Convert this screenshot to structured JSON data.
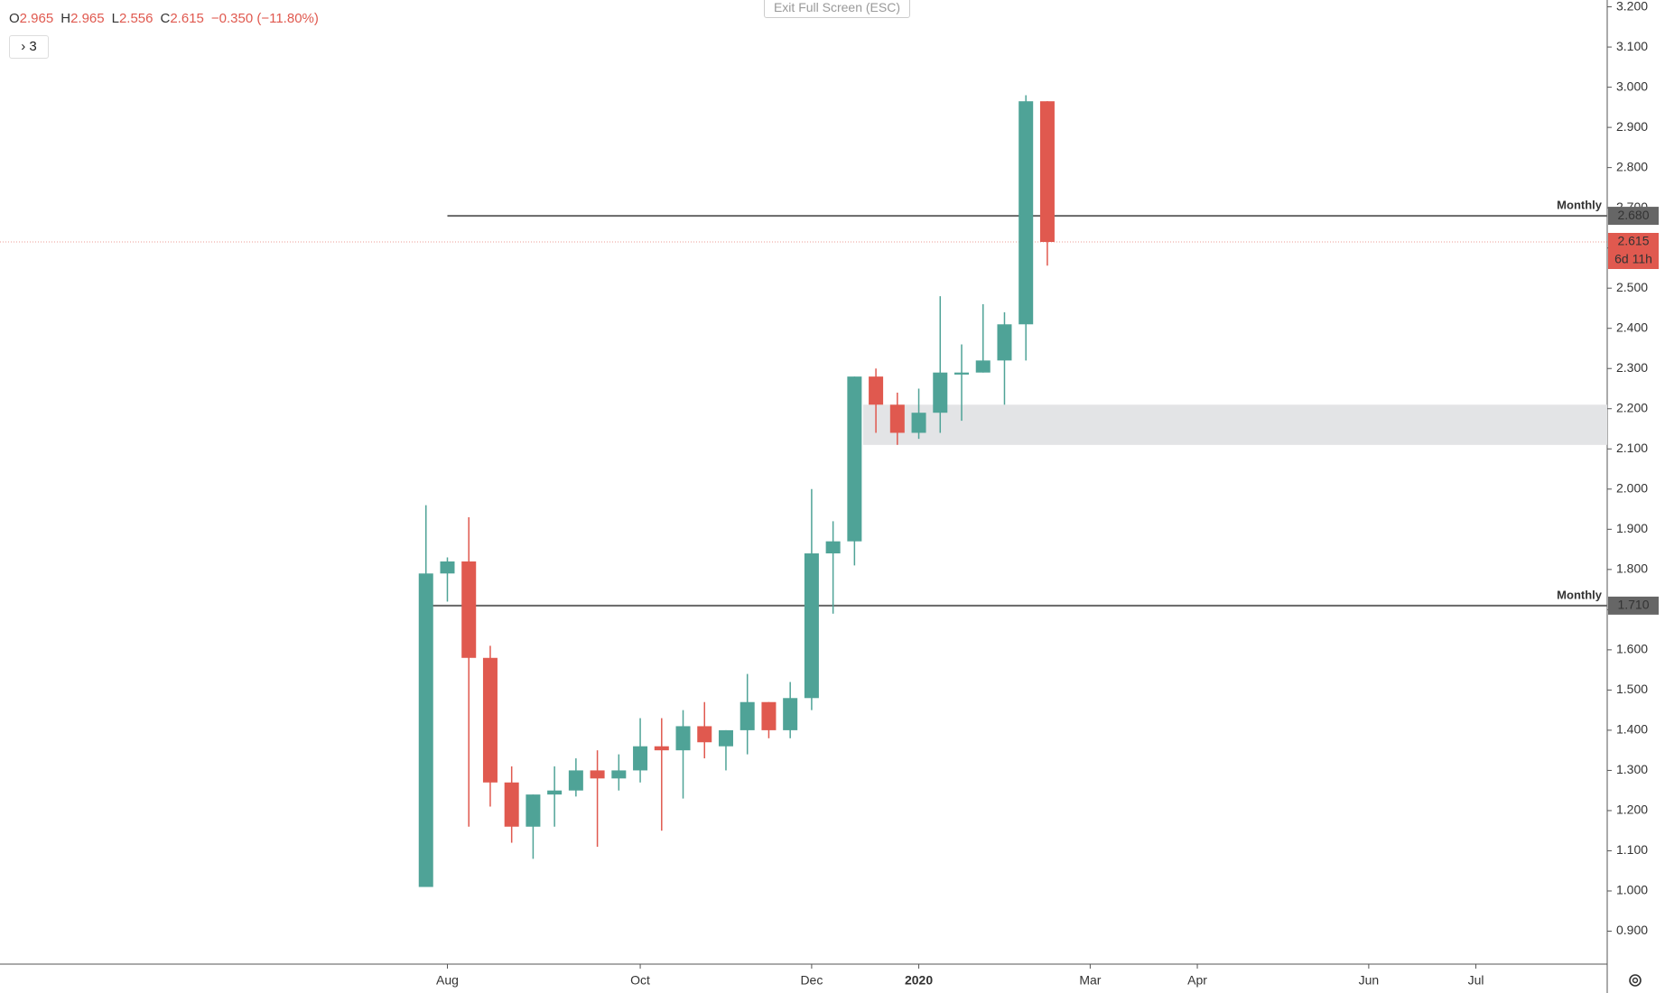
{
  "ui": {
    "exit_button": "Exit Full Screen (ESC)",
    "collapse_count": "3"
  },
  "header": {
    "open_prefix": "O",
    "open": "2.965",
    "high_prefix": "H",
    "high": "2.965",
    "low_prefix": "L",
    "low": "2.556",
    "close_prefix": "C",
    "close": "2.615",
    "change": "−0.350 (−11.80%)"
  },
  "chart_data": {
    "type": "candlestick",
    "x": [
      0,
      1,
      2,
      3,
      4,
      5,
      6,
      7,
      8,
      9,
      10,
      11,
      12,
      13,
      14,
      15,
      16,
      17,
      18,
      19,
      20,
      21,
      22,
      23,
      24,
      25,
      26,
      27,
      28,
      29
    ],
    "open": [
      1.01,
      1.79,
      1.82,
      1.58,
      1.27,
      1.16,
      1.24,
      1.25,
      1.3,
      1.28,
      1.3,
      1.36,
      1.35,
      1.41,
      1.36,
      1.4,
      1.47,
      1.4,
      1.48,
      1.84,
      1.87,
      2.28,
      2.21,
      2.14,
      2.19,
      2.285,
      2.29,
      2.32,
      2.41,
      2.965
    ],
    "high": [
      1.96,
      1.83,
      1.93,
      1.61,
      1.31,
      1.24,
      1.31,
      1.33,
      1.35,
      1.34,
      1.43,
      1.43,
      1.45,
      1.47,
      1.4,
      1.54,
      1.47,
      1.52,
      2.0,
      1.92,
      2.28,
      2.3,
      2.24,
      2.25,
      2.48,
      2.36,
      2.46,
      2.44,
      2.98,
      2.965
    ],
    "low": [
      1.01,
      1.72,
      1.16,
      1.21,
      1.12,
      1.08,
      1.16,
      1.235,
      1.11,
      1.25,
      1.27,
      1.15,
      1.23,
      1.33,
      1.3,
      1.34,
      1.38,
      1.38,
      1.45,
      1.69,
      1.81,
      2.14,
      2.11,
      2.125,
      2.14,
      2.17,
      2.29,
      2.21,
      2.32,
      2.556
    ],
    "close": [
      1.79,
      1.82,
      1.58,
      1.27,
      1.16,
      1.24,
      1.25,
      1.3,
      1.28,
      1.3,
      1.36,
      1.35,
      1.41,
      1.37,
      1.4,
      1.47,
      1.4,
      1.48,
      1.84,
      1.87,
      2.28,
      2.21,
      2.14,
      2.19,
      2.29,
      2.29,
      2.32,
      2.41,
      2.965,
      2.615
    ],
    "up_color": "#4fa397",
    "down_color": "#e0594f",
    "xlim": [
      -19.88,
      55.13
    ],
    "xticks": [
      {
        "value": 1,
        "label": "Aug"
      },
      {
        "value": 10,
        "label": "Oct"
      },
      {
        "value": 18,
        "label": "Dec"
      },
      {
        "value": 23,
        "label": "2020"
      },
      {
        "value": 31,
        "label": "Mar"
      },
      {
        "value": 36,
        "label": "Apr"
      },
      {
        "value": 44,
        "label": "Jun"
      },
      {
        "value": 49,
        "label": "Jul"
      }
    ],
    "ylim": [
      0.818,
      3.217
    ],
    "yticks": [
      {
        "value": 0.9,
        "label": "0.900"
      },
      {
        "value": 1.0,
        "label": "1.000"
      },
      {
        "value": 1.1,
        "label": "1.100"
      },
      {
        "value": 1.2,
        "label": "1.200"
      },
      {
        "value": 1.3,
        "label": "1.300"
      },
      {
        "value": 1.4,
        "label": "1.400"
      },
      {
        "value": 1.5,
        "label": "1.500"
      },
      {
        "value": 1.6,
        "label": "1.600"
      },
      {
        "value": 1.7,
        "label": "1.700"
      },
      {
        "value": 1.8,
        "label": "1.800"
      },
      {
        "value": 1.9,
        "label": "1.900"
      },
      {
        "value": 2.0,
        "label": "2.000"
      },
      {
        "value": 2.1,
        "label": "2.100"
      },
      {
        "value": 2.2,
        "label": "2.200"
      },
      {
        "value": 2.3,
        "label": "2.300"
      },
      {
        "value": 2.4,
        "label": "2.400"
      },
      {
        "value": 2.5,
        "label": "2.500"
      },
      {
        "value": 2.6,
        "label": "2.600"
      },
      {
        "value": 2.7,
        "label": "2.700"
      },
      {
        "value": 2.8,
        "label": "2.800"
      },
      {
        "value": 2.9,
        "label": "2.900"
      },
      {
        "value": 3.0,
        "label": "3.000"
      },
      {
        "value": 3.1,
        "label": "3.100"
      },
      {
        "value": 3.2,
        "label": "3.200"
      }
    ],
    "levels": [
      {
        "name": "Monthly",
        "value": 2.68,
        "label": "2.680",
        "from": 1,
        "color": "#666666"
      },
      {
        "name": "Monthly",
        "value": 1.71,
        "label": "1.710",
        "from": 0.2,
        "color": "#666666"
      }
    ],
    "zone": {
      "from": 20.4,
      "low": 2.11,
      "high": 2.21,
      "color": "#e3e4e6"
    },
    "last": {
      "value": 2.615,
      "label": "2.615",
      "countdown": "6d 11h",
      "color": "#e0594f"
    }
  }
}
